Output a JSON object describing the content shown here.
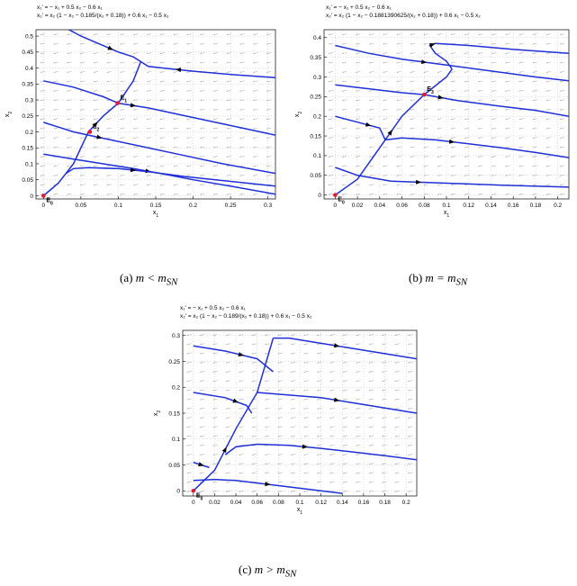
{
  "figure": {
    "panels": [
      {
        "id": "a",
        "eq1": "x₁' = − x₁ + 0.5 x₂ − 0.6 x₁",
        "eq2": "x₂' = x₂ (1 − x₂ − 0.185/(x₂ + 0.18)) + 0.6 x₁ − 0.5 x₂",
        "caption_prefix": "(a)",
        "caption_rel": "m < m",
        "caption_sub": "SN"
      },
      {
        "id": "b",
        "eq1": "x₁' = − x₁ + 0.5 x₂ − 0.6 x₁",
        "eq2": "x₂' = x₂ (1 − x₂ − 0.1881390625/(x₂ + 0.18)) + 0.6 x₁ − 0.5 x₂",
        "caption_prefix": "(b)",
        "caption_rel": "m = m",
        "caption_sub": "SN"
      },
      {
        "id": "c",
        "eq1": "x₁' = − x₁ + 0.5 x₂ − 0.6 x₁",
        "eq2": "x₂' = x₂ (1 − x₂ − 0.189/(x₂ + 0.18)) + 0.6 x₁ − 0.5 x₂",
        "caption_prefix": "(c)",
        "caption_rel": "m > m",
        "caption_sub": "SN"
      }
    ]
  },
  "chart_data": [
    {
      "type": "line",
      "title": "",
      "xlabel": "x1",
      "ylabel": "x2",
      "xlim": [
        -0.01,
        0.31
      ],
      "ylim": [
        -0.01,
        0.52
      ],
      "xticks": [
        "0",
        "0.05",
        "0.1",
        "0.15",
        "0.2",
        "0.25",
        "0.3"
      ],
      "xtick_values": [
        0,
        0.05,
        0.1,
        0.15,
        0.2,
        0.25,
        0.3
      ],
      "yticks": [
        "0",
        "0.05",
        "0.1",
        "0.15",
        "0.2",
        "0.25",
        "0.3",
        "0.35",
        "0.4",
        "0.45",
        "0.5"
      ],
      "ytick_values": [
        0,
        0.05,
        0.1,
        0.15,
        0.2,
        0.25,
        0.3,
        0.35,
        0.4,
        0.45,
        0.5
      ],
      "grid": true,
      "equilibria": [
        {
          "label": "E0",
          "x": 0,
          "y": 0,
          "color": "#e8192c"
        },
        {
          "label": "E1",
          "x": 0.099,
          "y": 0.29,
          "color": "#e8192c"
        },
        {
          "label": "E2",
          "x": 0.062,
          "y": 0.2,
          "color": "#e8192c"
        }
      ],
      "trajectories": [
        {
          "x": [
            0.0,
            0.04,
            0.08,
            0.12,
            0.16,
            0.2,
            0.25,
            0.31
          ],
          "y": [
            0.13,
            0.115,
            0.1,
            0.085,
            0.068,
            0.05,
            0.03,
            0.005
          ]
        },
        {
          "x": [
            0.0,
            0.02,
            0.04,
            0.06,
            0.09,
            0.13,
            0.18,
            0.24,
            0.31
          ],
          "y": [
            0.23,
            0.215,
            0.2,
            0.19,
            0.175,
            0.155,
            0.13,
            0.1,
            0.07
          ]
        },
        {
          "x": [
            0.0,
            0.04,
            0.08,
            0.1,
            0.14,
            0.18,
            0.22,
            0.27,
            0.31
          ],
          "y": [
            0.36,
            0.34,
            0.31,
            0.29,
            0.275,
            0.255,
            0.235,
            0.21,
            0.19
          ]
        },
        {
          "x": [
            0.03,
            0.05,
            0.08,
            0.1,
            0.12,
            0.13
          ],
          "y": [
            0.525,
            0.5,
            0.47,
            0.45,
            0.435,
            0.42
          ]
        },
        {
          "x": [
            0.31,
            0.25,
            0.2,
            0.16,
            0.14,
            0.13
          ],
          "y": [
            0.37,
            0.38,
            0.39,
            0.4,
            0.405,
            0.42
          ]
        },
        {
          "x": [
            0.0,
            0.02,
            0.04,
            0.06,
            0.08,
            0.1,
            0.12,
            0.13
          ],
          "y": [
            0.0,
            0.04,
            0.1,
            0.2,
            0.25,
            0.29,
            0.36,
            0.42
          ]
        },
        {
          "x": [
            0.03,
            0.04,
            0.06,
            0.1,
            0.14,
            0.19,
            0.25,
            0.31
          ],
          "y": [
            0.07,
            0.085,
            0.088,
            0.085,
            0.075,
            0.06,
            0.045,
            0.03
          ]
        }
      ]
    },
    {
      "type": "line",
      "title": "",
      "xlabel": "x1",
      "ylabel": "x2",
      "xlim": [
        -0.01,
        0.21
      ],
      "ylim": [
        -0.01,
        0.42
      ],
      "xticks": [
        "0",
        "0.02",
        "0.04",
        "0.06",
        "0.08",
        "0.1",
        "0.12",
        "0.14",
        "0.16",
        "0.18",
        "0.2"
      ],
      "xtick_values": [
        0,
        0.02,
        0.04,
        0.06,
        0.08,
        0.1,
        0.12,
        0.14,
        0.16,
        0.18,
        0.2
      ],
      "yticks": [
        "0",
        "0.05",
        "0.1",
        "0.15",
        "0.2",
        "0.25",
        "0.3",
        "0.35",
        "0.4"
      ],
      "ytick_values": [
        0,
        0.05,
        0.1,
        0.15,
        0.2,
        0.25,
        0.3,
        0.35,
        0.4
      ],
      "grid": true,
      "equilibria": [
        {
          "label": "E0",
          "x": 0,
          "y": 0,
          "color": "#e8192c"
        },
        {
          "label": "E3",
          "x": 0.08,
          "y": 0.255,
          "color": "#e8192c"
        }
      ],
      "trajectories": [
        {
          "x": [
            0.0,
            0.03,
            0.06,
            0.1,
            0.14,
            0.18,
            0.21
          ],
          "y": [
            0.38,
            0.36,
            0.345,
            0.33,
            0.315,
            0.3,
            0.29
          ]
        },
        {
          "x": [
            0.0,
            0.03,
            0.06,
            0.08,
            0.11,
            0.15,
            0.18,
            0.21
          ],
          "y": [
            0.28,
            0.27,
            0.26,
            0.255,
            0.24,
            0.225,
            0.215,
            0.2
          ]
        },
        {
          "x": [
            0.0,
            0.02,
            0.04,
            0.045
          ],
          "y": [
            0.2,
            0.185,
            0.17,
            0.14
          ]
        },
        {
          "x": [
            0.045,
            0.06,
            0.09,
            0.12,
            0.15,
            0.18,
            0.21
          ],
          "y": [
            0.14,
            0.145,
            0.14,
            0.13,
            0.12,
            0.108,
            0.095
          ]
        },
        {
          "x": [
            0.0,
            0.02,
            0.05,
            0.1,
            0.15,
            0.21
          ],
          "y": [
            0.07,
            0.05,
            0.035,
            0.03,
            0.025,
            0.02
          ]
        },
        {
          "x": [
            0.0,
            0.02,
            0.04,
            0.06,
            0.08,
            0.1,
            0.105
          ],
          "y": [
            0.0,
            0.04,
            0.12,
            0.2,
            0.255,
            0.3,
            0.32
          ]
        },
        {
          "x": [
            0.105,
            0.1,
            0.09,
            0.085,
            0.09,
            0.12,
            0.16,
            0.21
          ],
          "y": [
            0.32,
            0.34,
            0.36,
            0.38,
            0.385,
            0.38,
            0.37,
            0.36
          ]
        }
      ]
    },
    {
      "type": "line",
      "title": "",
      "xlabel": "x1",
      "ylabel": "x2",
      "xlim": [
        -0.01,
        0.21
      ],
      "ylim": [
        -0.01,
        0.31
      ],
      "xticks": [
        "0",
        "0.02",
        "0.04",
        "0.06",
        "0.08",
        "0.1",
        "0.12",
        "0.14",
        "0.16",
        "0.18",
        "0.2"
      ],
      "xtick_values": [
        0,
        0.02,
        0.04,
        0.06,
        0.08,
        0.1,
        0.12,
        0.14,
        0.16,
        0.18,
        0.2
      ],
      "yticks": [
        "0",
        "0.05",
        "0.1",
        "0.15",
        "0.2",
        "0.25",
        "0.3"
      ],
      "ytick_values": [
        0,
        0.05,
        0.1,
        0.15,
        0.2,
        0.25,
        0.3
      ],
      "grid": true,
      "equilibria": [
        {
          "label": "E0",
          "x": 0,
          "y": 0,
          "color": "#e8192c"
        }
      ],
      "trajectories": [
        {
          "x": [
            0.0,
            0.03,
            0.06,
            0.075
          ],
          "y": [
            0.28,
            0.27,
            0.255,
            0.23
          ]
        },
        {
          "x": [
            0.075,
            0.09,
            0.12,
            0.15,
            0.18,
            0.21
          ],
          "y": [
            0.295,
            0.295,
            0.285,
            0.275,
            0.265,
            0.255
          ]
        },
        {
          "x": [
            0.0,
            0.03,
            0.05,
            0.055
          ],
          "y": [
            0.19,
            0.18,
            0.165,
            0.15
          ]
        },
        {
          "x": [
            0.06,
            0.09,
            0.12,
            0.15,
            0.18,
            0.21
          ],
          "y": [
            0.19,
            0.185,
            0.18,
            0.17,
            0.16,
            0.15
          ]
        },
        {
          "x": [
            0.03,
            0.04,
            0.06,
            0.09,
            0.12,
            0.15,
            0.18,
            0.21
          ],
          "y": [
            0.07,
            0.085,
            0.09,
            0.088,
            0.082,
            0.075,
            0.068,
            0.06
          ]
        },
        {
          "x": [
            0.0,
            0.02,
            0.04,
            0.06,
            0.08,
            0.1,
            0.12,
            0.14
          ],
          "y": [
            0.02,
            0.022,
            0.02,
            0.015,
            0.01,
            0.005,
            0.0,
            -0.005
          ]
        },
        {
          "x": [
            0.0,
            0.02,
            0.04,
            0.06,
            0.075
          ],
          "y": [
            0.0,
            0.04,
            0.12,
            0.19,
            0.295
          ]
        },
        {
          "x": [
            0.0,
            0.015
          ],
          "y": [
            0.055,
            0.045
          ]
        }
      ]
    }
  ]
}
